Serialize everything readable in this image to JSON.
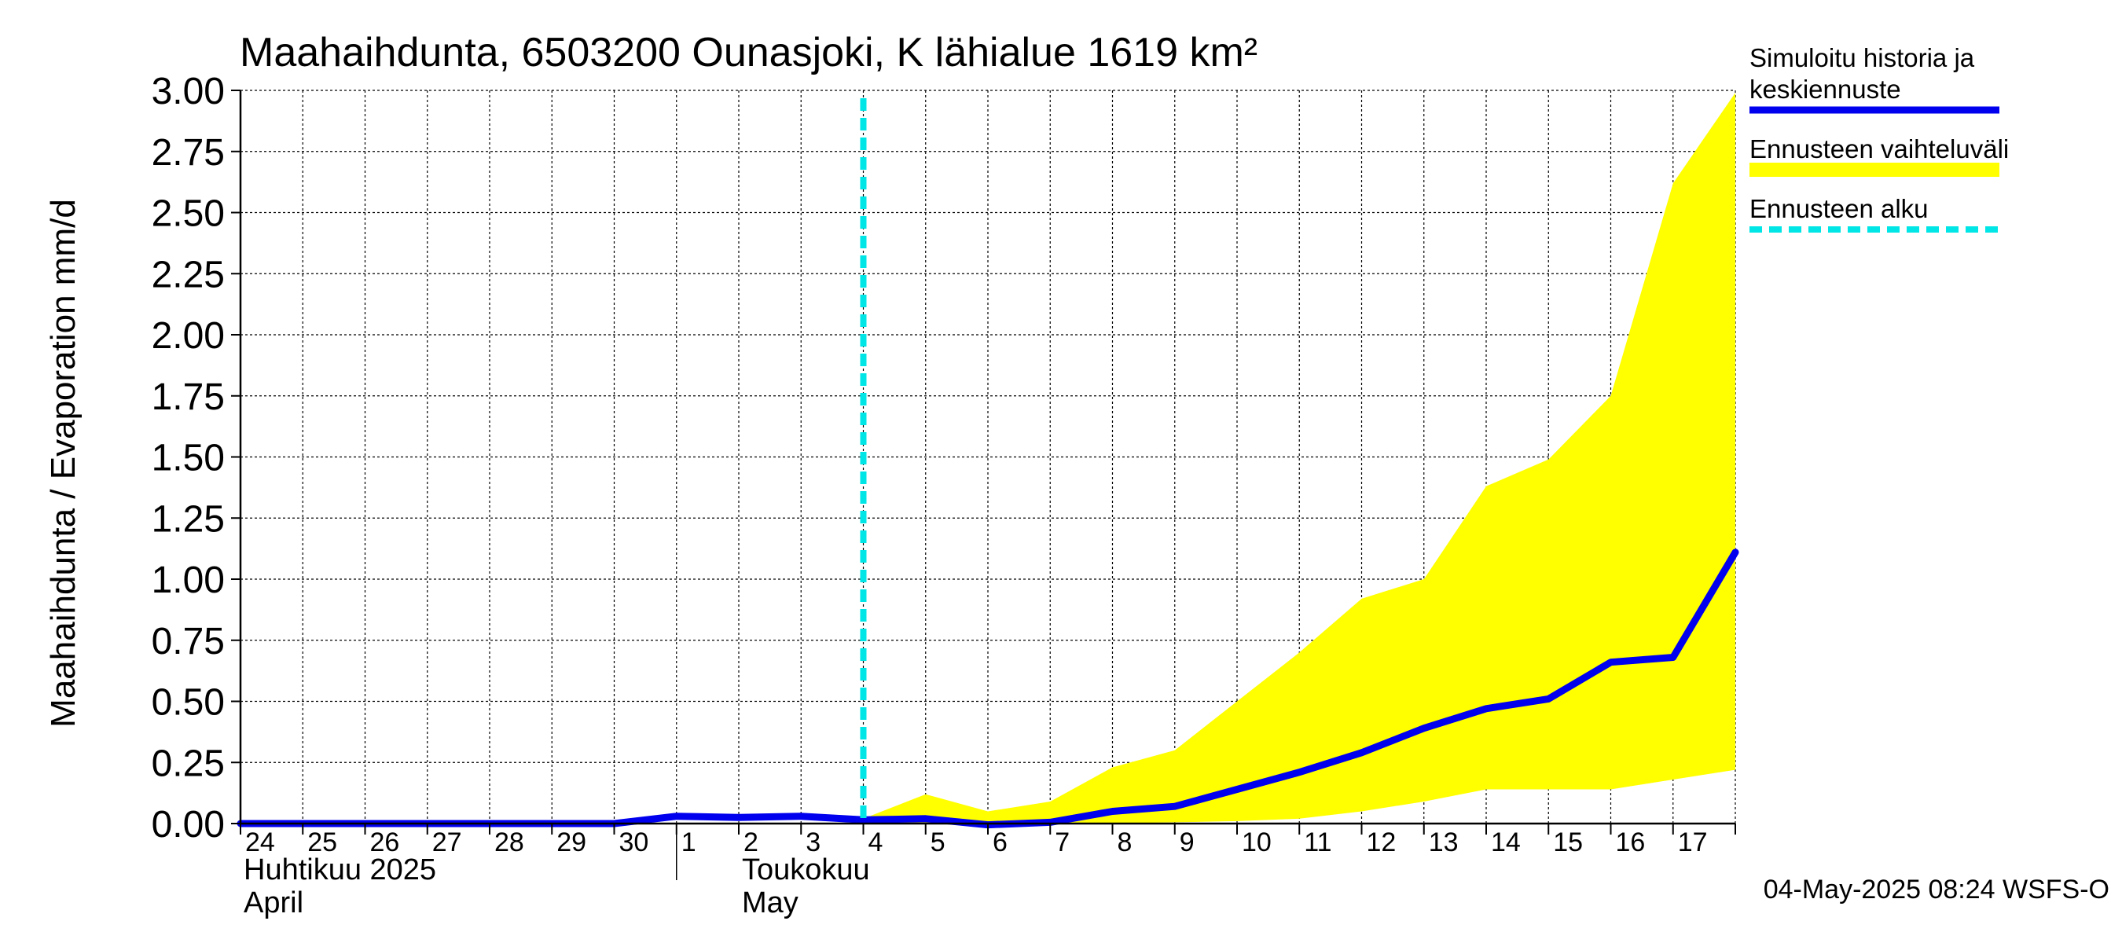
{
  "chart_data": {
    "type": "line",
    "title": "Maahaihdunta, 6503200 Ounasjoki, K lähialue 1619 km²",
    "ylabel": "Maahaihdunta / Evaporation   mm/d",
    "ylim": [
      0,
      3.0
    ],
    "yticks": [
      "0.00",
      "0.25",
      "0.50",
      "0.75",
      "1.00",
      "1.25",
      "1.50",
      "1.75",
      "2.00",
      "2.25",
      "2.50",
      "2.75",
      "3.00"
    ],
    "xlim": [
      0,
      24
    ],
    "x_tick_labels": [
      "24",
      "25",
      "26",
      "27",
      "28",
      "29",
      "30",
      "1",
      "2",
      "3",
      "4",
      "5",
      "6",
      "7",
      "8",
      "9",
      "10",
      "11",
      "12",
      "13",
      "14",
      "15",
      "16",
      "17"
    ],
    "month_labels": [
      {
        "line1": "Huhtikuu  2025",
        "line2": "April",
        "start_index": 0
      },
      {
        "line1": "Toukokuu",
        "line2": "May",
        "start_index": 8
      }
    ],
    "month_separator_index": 7,
    "forecast_start_x": 10,
    "grid": true,
    "series": [
      {
        "name": "Simuloitu historia ja keskiennuste",
        "color": "#0000ee",
        "x": [
          0,
          1,
          2,
          3,
          4,
          5,
          6,
          7,
          8,
          9,
          10,
          11,
          12,
          13,
          14,
          15,
          16,
          17,
          18,
          19,
          20,
          21,
          22,
          23,
          24
        ],
        "values": [
          0,
          0,
          0,
          0,
          0,
          0,
          0,
          0.03,
          0.025,
          0.03,
          0.015,
          0.02,
          -0.005,
          0.005,
          0.05,
          0.07,
          0.14,
          0.21,
          0.29,
          0.39,
          0.47,
          0.51,
          0.66,
          0.68,
          1.11
        ]
      }
    ],
    "band": {
      "name": "Ennusteen vaihteluväli",
      "color": "#ffff00",
      "x": [
        10,
        11,
        12,
        13,
        14,
        15,
        16,
        17,
        18,
        19,
        20,
        21,
        22,
        23,
        24
      ],
      "upper": [
        0.02,
        0.12,
        0.05,
        0.09,
        0.23,
        0.3,
        0.5,
        0.7,
        0.92,
        1.0,
        1.38,
        1.49,
        1.75,
        2.62,
        2.99
      ],
      "lower": [
        0.01,
        0.0,
        -0.005,
        0.0,
        0.0,
        0.005,
        0.01,
        0.02,
        0.05,
        0.09,
        0.14,
        0.14,
        0.14,
        0.18,
        0.22
      ]
    },
    "legend": {
      "placement": "right",
      "items": [
        {
          "label_lines": [
            "Simuloitu historia ja",
            "keskiennuste"
          ],
          "style": "line",
          "color": "#0000ee"
        },
        {
          "label_lines": [
            "Ennusteen vaihteluväli"
          ],
          "style": "band",
          "color": "#ffff00"
        },
        {
          "label_lines": [
            "Ennusteen alku"
          ],
          "style": "dashed",
          "color": "#00e5e5"
        }
      ]
    },
    "footer": "04-May-2025 08:24 WSFS-O"
  }
}
